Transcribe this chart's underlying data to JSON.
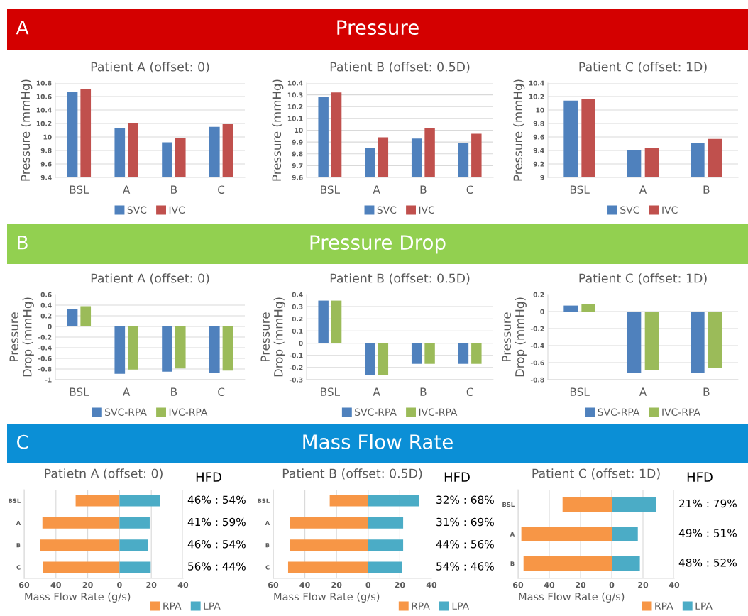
{
  "chart_data": [
    {
      "type": "other",
      "title": "Pressure",
      "annotations": [
        "A"
      ],
      "color": "#d40000"
    },
    {
      "type": "bar",
      "title": "Patient A (offset: 0)",
      "ylabel": "Pressure (mmHg)",
      "categories": [
        "BSL",
        "A",
        "B",
        "C"
      ],
      "series": [
        {
          "name": "SVC",
          "color": "#4f81bd",
          "values": [
            10.67,
            10.13,
            9.92,
            10.15
          ]
        },
        {
          "name": "IVC",
          "color": "#c0504d",
          "values": [
            10.71,
            10.21,
            9.98,
            10.19
          ]
        }
      ],
      "ylim": [
        9.4,
        10.8
      ],
      "yticks": [
        9.4,
        9.6,
        9.8,
        10,
        10.2,
        10.4,
        10.6,
        10.8
      ],
      "grid": "y",
      "legend": "bottom"
    },
    {
      "type": "bar",
      "title": "Patient B (offset: 0.5D)",
      "ylabel": "Pressure (mmHg)",
      "categories": [
        "BSL",
        "A",
        "B",
        "C"
      ],
      "series": [
        {
          "name": "SVC",
          "color": "#4f81bd",
          "values": [
            10.28,
            9.85,
            9.93,
            9.89
          ]
        },
        {
          "name": "IVC",
          "color": "#c0504d",
          "values": [
            10.32,
            9.94,
            10.02,
            9.97
          ]
        }
      ],
      "ylim": [
        9.6,
        10.4
      ],
      "yticks": [
        9.6,
        9.7,
        9.8,
        9.9,
        10,
        10.1,
        10.2,
        10.3,
        10.4
      ],
      "grid": "y",
      "legend": "bottom"
    },
    {
      "type": "bar",
      "title": "Patient C (offset: 1D)",
      "ylabel": "Pressure (mmHg)",
      "categories": [
        "BSL",
        "A",
        "B"
      ],
      "series": [
        {
          "name": "SVC",
          "color": "#4f81bd",
          "values": [
            10.14,
            9.41,
            9.51
          ]
        },
        {
          "name": "IVC",
          "color": "#c0504d",
          "values": [
            10.16,
            9.44,
            9.57
          ]
        }
      ],
      "ylim": [
        9,
        10.4
      ],
      "yticks": [
        9,
        9.2,
        9.4,
        9.6,
        9.8,
        10,
        10.2,
        10.4
      ],
      "grid": "y",
      "legend": "bottom"
    },
    {
      "type": "other",
      "title": "Pressure Drop",
      "annotations": [
        "B"
      ],
      "color": "#92d050"
    },
    {
      "type": "bar",
      "title": "Patient A (offset: 0)",
      "ylabel": "Pressure Drop (mmHg)",
      "categories": [
        "BSL",
        "A",
        "B",
        "C"
      ],
      "series": [
        {
          "name": "SVC-RPA",
          "color": "#4f81bd",
          "values": [
            0.33,
            -0.89,
            -0.85,
            -0.87
          ]
        },
        {
          "name": "IVC-RPA",
          "color": "#9bbb59",
          "values": [
            0.38,
            -0.81,
            -0.79,
            -0.83
          ]
        }
      ],
      "ylim": [
        -1,
        0.6
      ],
      "yticks": [
        -1,
        -0.8,
        -0.6,
        -0.4,
        -0.2,
        0,
        0.2,
        0.4,
        0.6
      ],
      "grid": "y",
      "legend": "bottom"
    },
    {
      "type": "bar",
      "title": "Patient B (offset: 0.5D)",
      "ylabel": "Pressure Drop (mmHg)",
      "categories": [
        "BSL",
        "A",
        "B",
        "C"
      ],
      "series": [
        {
          "name": "SVC-RPA",
          "color": "#4f81bd",
          "values": [
            0.35,
            -0.26,
            -0.17,
            -0.17
          ]
        },
        {
          "name": "IVC-RPA",
          "color": "#9bbb59",
          "values": [
            0.35,
            -0.26,
            -0.17,
            -0.17
          ]
        }
      ],
      "ylim": [
        -0.3,
        0.4
      ],
      "yticks": [
        -0.3,
        -0.2,
        -0.1,
        0,
        0.1,
        0.2,
        0.3,
        0.4
      ],
      "grid": "y",
      "legend": "bottom"
    },
    {
      "type": "bar",
      "title": "Patient C (offset: 1D)",
      "ylabel": "Pressure Drop (mmHg)",
      "categories": [
        "BSL",
        "A",
        "B"
      ],
      "series": [
        {
          "name": "SVC-RPA",
          "color": "#4f81bd",
          "values": [
            0.07,
            -0.72,
            -0.72
          ]
        },
        {
          "name": "IVC-RPA",
          "color": "#9bbb59",
          "values": [
            0.09,
            -0.69,
            -0.66
          ]
        }
      ],
      "ylim": [
        -0.8,
        0.2
      ],
      "yticks": [
        -0.8,
        -0.6,
        -0.4,
        -0.2,
        0,
        0.2
      ],
      "grid": "y",
      "legend": "bottom"
    },
    {
      "type": "other",
      "title": "Mass Flow Rate",
      "annotations": [
        "C"
      ],
      "color": "#0b8fd6"
    },
    {
      "type": "bar",
      "orientation": "horizontal",
      "stacked": true,
      "title": "Patietn A (offset: 0)",
      "xlabel": "Mass Flow Rate (g/s)",
      "categories": [
        "BSL",
        "A",
        "B",
        "C"
      ],
      "series": [
        {
          "name": "RPA",
          "color": "#f79646",
          "values": [
            -27.6,
            -48.5,
            -49.9,
            -48.2
          ]
        },
        {
          "name": "LPA",
          "color": "#4bacc6",
          "values": [
            25.4,
            19,
            17.7,
            19.6
          ]
        }
      ],
      "xlim": [
        -60,
        40
      ],
      "xticks": [
        {
          "value": -60,
          "label": "60"
        },
        {
          "value": -40,
          "label": "40"
        },
        {
          "value": -20,
          "label": "20"
        },
        0,
        20,
        40
      ],
      "grid": "x",
      "legend": "bottom",
      "annotations": [
        "HFD",
        "46% : 54%",
        "41% : 59%",
        "46% : 54%",
        "56% : 44%"
      ]
    },
    {
      "type": "bar",
      "orientation": "horizontal",
      "stacked": true,
      "title": "Patient B (offset: 0.5D)",
      "xlabel": "Mass Flow Rate (g/s)",
      "categories": [
        "BSL",
        "A",
        "B",
        "C"
      ],
      "series": [
        {
          "name": "RPA",
          "color": "#f79646",
          "values": [
            -24.3,
            -49.5,
            -49.5,
            -50.6
          ]
        },
        {
          "name": "LPA",
          "color": "#4bacc6",
          "values": [
            32,
            22.1,
            22.1,
            21.2
          ]
        }
      ],
      "xlim": [
        -60,
        40
      ],
      "xticks": [
        {
          "value": -60,
          "label": "60"
        },
        {
          "value": -40,
          "label": "40"
        },
        {
          "value": -20,
          "label": "20"
        },
        0,
        20,
        40
      ],
      "grid": "x",
      "legend": "bottom",
      "annotations": [
        "HFD",
        "32% : 68%",
        "31% : 69%",
        "44% : 56%",
        "54% : 46%"
      ]
    },
    {
      "type": "bar",
      "orientation": "horizontal",
      "stacked": true,
      "title": "Patient C (offset: 1D)",
      "xlabel": "Mass Flow Rate (g/s)",
      "categories": [
        "BSL",
        "A",
        "B"
      ],
      "series": [
        {
          "name": "RPA",
          "color": "#f79646",
          "values": [
            -31.5,
            -57.9,
            -56.5
          ]
        },
        {
          "name": "LPA",
          "color": "#4bacc6",
          "values": [
            28.4,
            16.7,
            18.0
          ]
        }
      ],
      "xlim": [
        -60,
        40
      ],
      "xticks": [
        {
          "value": -60,
          "label": "60"
        },
        {
          "value": -40,
          "label": "40"
        },
        {
          "value": -20,
          "label": "20"
        },
        0,
        20,
        40
      ],
      "grid": "x",
      "legend": "bottom",
      "annotations": [
        "HFD",
        "21% : 79%",
        "49% : 51%",
        "48% : 52%"
      ]
    }
  ]
}
